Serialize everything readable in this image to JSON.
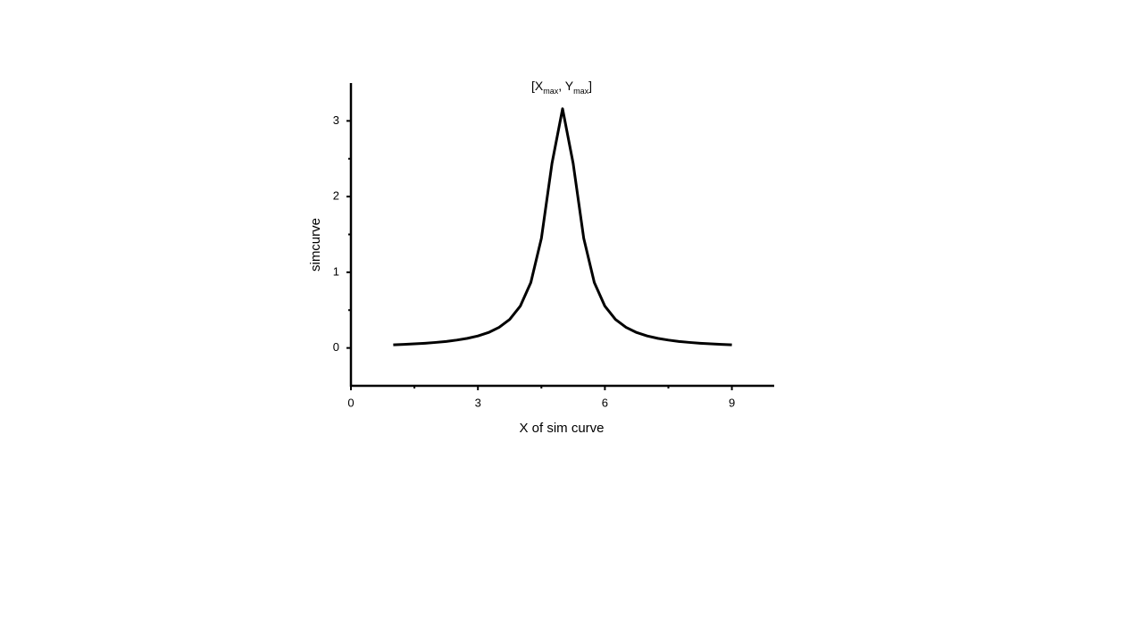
{
  "chart_data": {
    "type": "line",
    "annotation": [
      "[X",
      "max",
      ", Y",
      "max",
      "]"
    ],
    "xlabel": "X of sim curve",
    "ylabel": "simcurve",
    "xlim": [
      0,
      10
    ],
    "ylim": [
      -0.5,
      3.5
    ],
    "xticks": [
      0,
      3,
      6,
      9
    ],
    "yticks": [
      0,
      1,
      2,
      3
    ],
    "xminor": [
      1.5,
      4.5,
      7.5
    ],
    "yminor": [
      0.5,
      1.5,
      2.5
    ],
    "color": "#000000",
    "x": [
      1,
      1.25,
      1.5,
      1.75,
      2,
      2.25,
      2.5,
      2.75,
      3,
      3.25,
      3.5,
      3.75,
      4,
      4.25,
      4.5,
      4.75,
      5,
      5.25,
      5.5,
      5.75,
      6,
      6.25,
      6.5,
      6.75,
      7,
      7.25,
      7.5,
      7.75,
      8,
      8.25,
      8.5,
      8.75,
      9
    ],
    "y": [
      0.041,
      0.047,
      0.054,
      0.062,
      0.073,
      0.086,
      0.104,
      0.127,
      0.159,
      0.204,
      0.272,
      0.377,
      0.552,
      0.864,
      1.449,
      2.439,
      3.16,
      2.439,
      1.449,
      0.864,
      0.552,
      0.377,
      0.272,
      0.204,
      0.159,
      0.127,
      0.104,
      0.086,
      0.073,
      0.062,
      0.054,
      0.047,
      0.041
    ]
  }
}
